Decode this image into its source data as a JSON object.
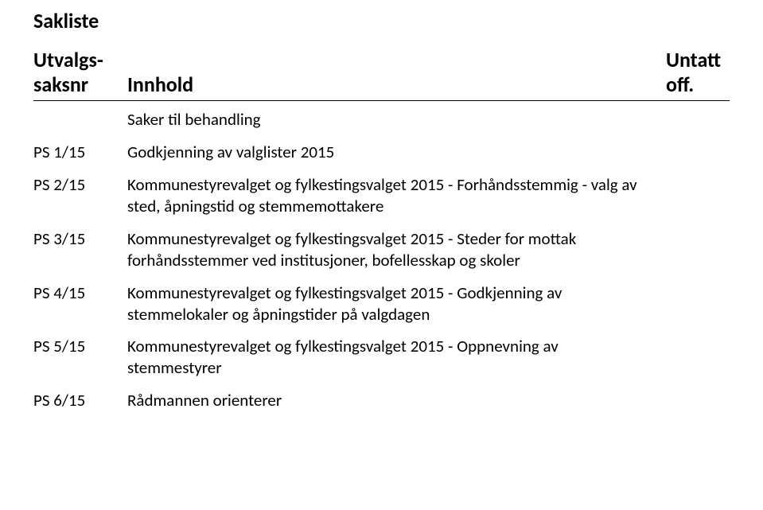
{
  "title": "Sakliste",
  "header": {
    "left_line1": "Utvalgs-",
    "left_line2": "saksnr",
    "mid": "Innhold",
    "right_line1": "Untatt",
    "right_line2": "off."
  },
  "intro": "Saker til behandling",
  "rows": [
    {
      "num": "PS 1/15",
      "text": "Godkjenning av valglister 2015"
    },
    {
      "num": "PS 2/15",
      "text": "Kommunestyrevalget og fylkestingsvalget 2015 - Forhåndsstemmig - valg av sted, åpningstid og stemmemottakere"
    },
    {
      "num": "PS 3/15",
      "text": "Kommunestyrevalget og fylkestingsvalget 2015 - Steder for mottak forhåndsstemmer ved institusjoner, bofellesskap og skoler"
    },
    {
      "num": "PS 4/15",
      "text": "Kommunestyrevalget og fylkestingsvalget 2015 - Godkjenning av stemmelokaler og åpningstider på valgdagen"
    },
    {
      "num": "PS 5/15",
      "text": "Kommunestyrevalget og fylkestingsvalget 2015 - Oppnevning av stemmestyrer"
    },
    {
      "num": "PS 6/15",
      "text": "Rådmannen orienterer"
    }
  ]
}
